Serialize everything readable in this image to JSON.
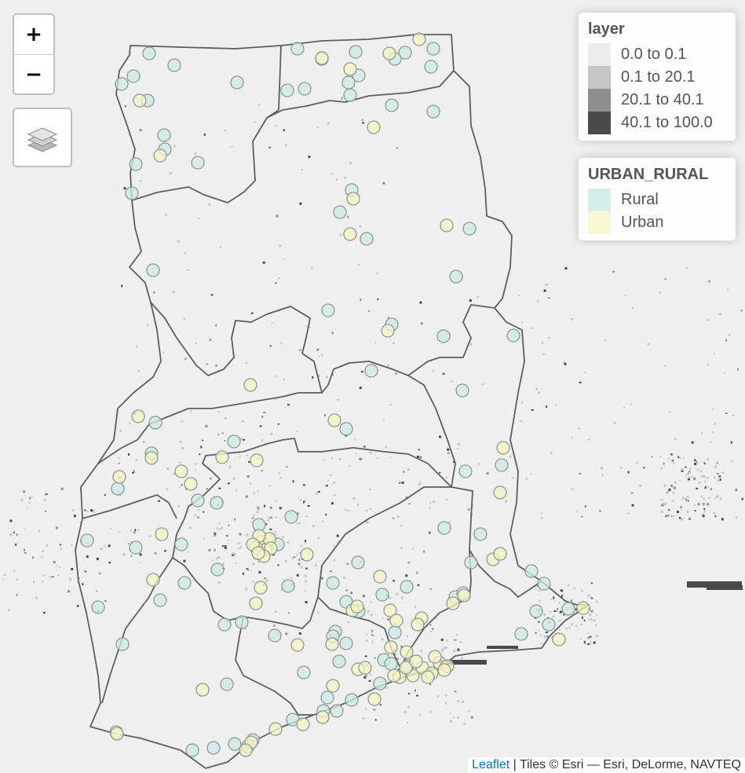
{
  "controls": {
    "zoom_in": "+",
    "zoom_out": "−"
  },
  "legend_layer": {
    "title": "layer",
    "items": [
      {
        "label": "0.0 to 0.1",
        "color": "#ececec"
      },
      {
        "label": "0.1 to 20.1",
        "color": "#c6c6c6"
      },
      {
        "label": "20.1 to 40.1",
        "color": "#8e8e8e"
      },
      {
        "label": "40.1 to 100.0",
        "color": "#4a4a4a"
      }
    ]
  },
  "legend_urban_rural": {
    "title": "URBAN_RURAL",
    "items": [
      {
        "label": "Rural",
        "color": "#d4ecea"
      },
      {
        "label": "Urban",
        "color": "#f8f8d4"
      }
    ]
  },
  "attribution": {
    "link": "Leaflet",
    "text": " | Tiles © Esri — Esri, DeLorme, NAVTEQ"
  },
  "colors": {
    "background": "#efefef",
    "border": "#5e5e5e",
    "rural_fill": "#cde8e4",
    "urban_fill": "#f6f3c4",
    "marker_stroke": "#8a9b92"
  },
  "markers": {
    "rural_count": 140,
    "urban_count": 95
  }
}
